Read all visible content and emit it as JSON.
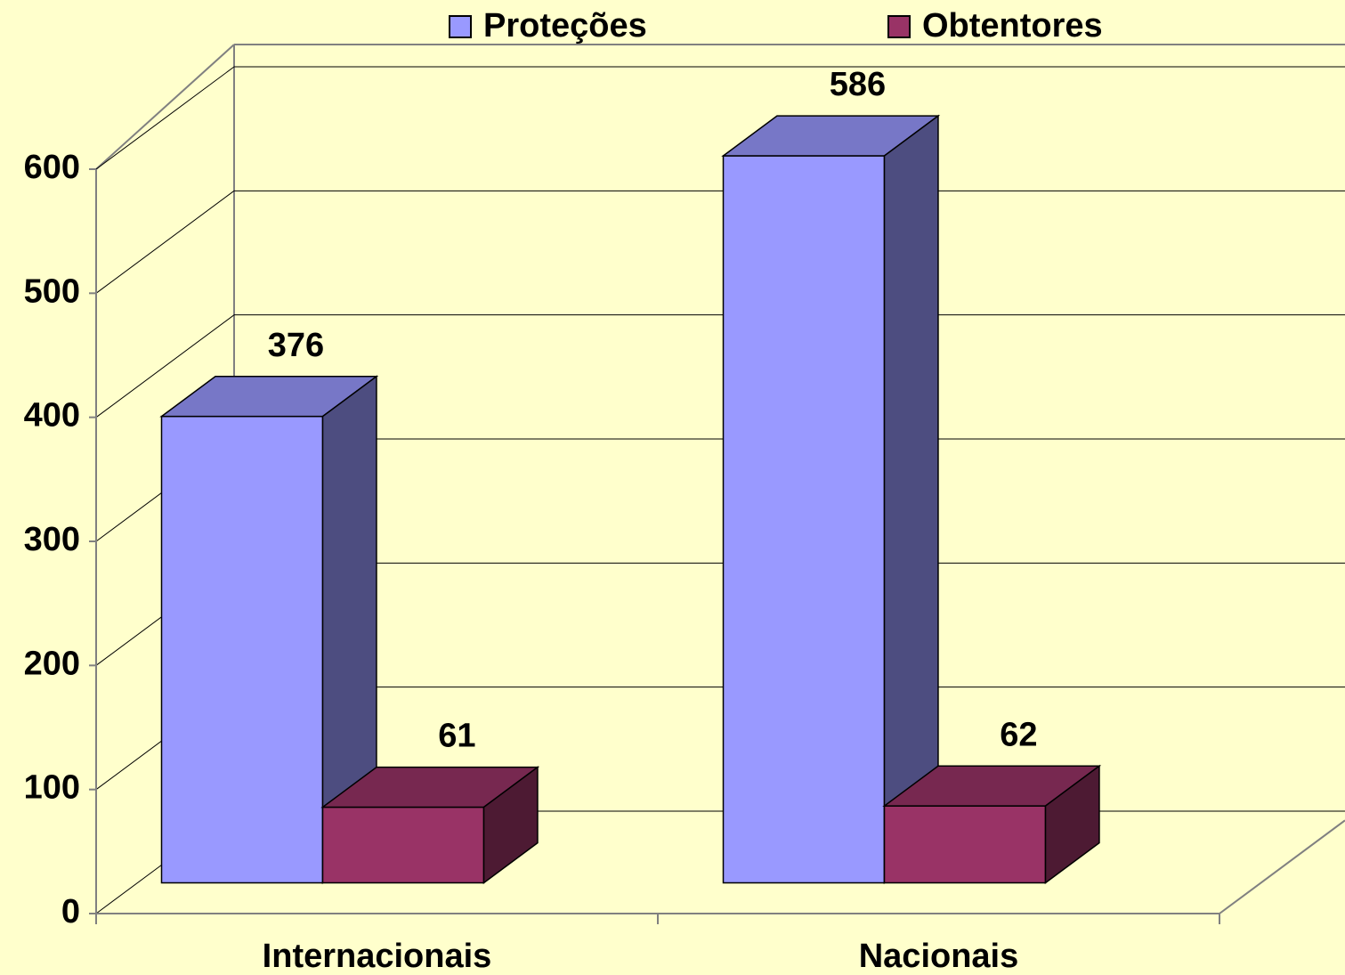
{
  "chart_data": {
    "type": "bar3d",
    "categories": [
      "Internacionais",
      "Nacionais"
    ],
    "series": [
      {
        "name": "Proteções",
        "color": "#9999ff",
        "values": [
          376,
          586
        ]
      },
      {
        "name": "Obtentores",
        "color": "#993366",
        "values": [
          61,
          62
        ]
      }
    ],
    "ylim": [
      0,
      600
    ],
    "yticks": [
      0,
      100,
      200,
      300,
      400,
      500,
      600
    ],
    "grid": true,
    "legend": "top"
  }
}
